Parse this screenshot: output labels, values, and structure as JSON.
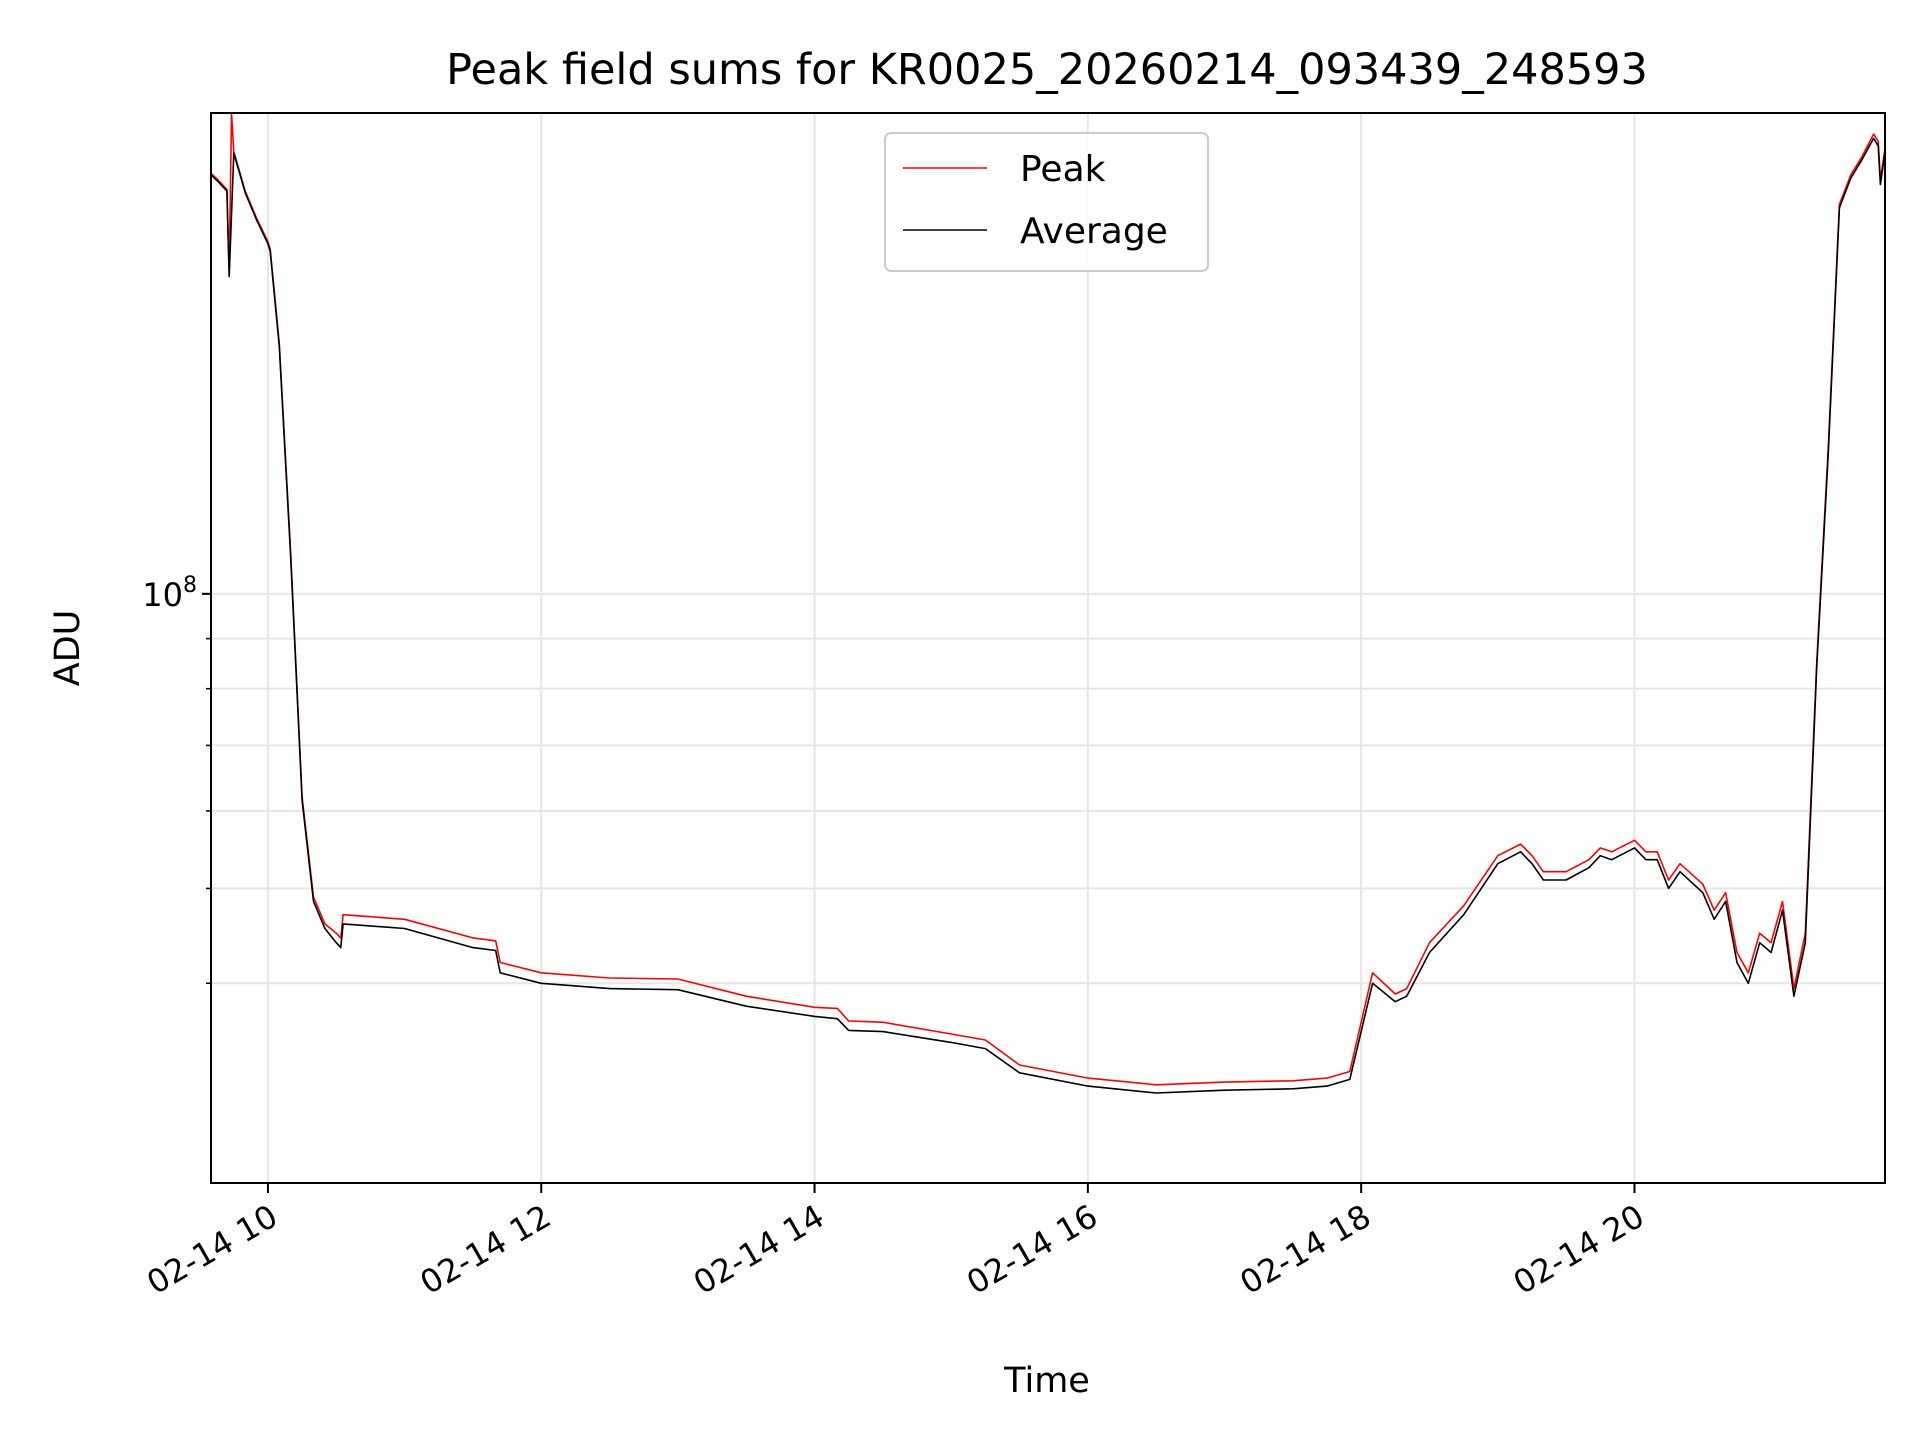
{
  "chart_data": {
    "type": "line",
    "title": "Peak field sums for KR0025_20260214_093439_248593",
    "xlabel": "Time",
    "ylabel": "ADU",
    "yscale": "log",
    "xlim": [
      "2026-02-14 09:35",
      "2026-02-14 21:50"
    ],
    "ylim": [
      25000000,
      310000000
    ],
    "x_ticks": [
      "2026-02-14 10:00",
      "2026-02-14 12:00",
      "2026-02-14 14:00",
      "2026-02-14 16:00",
      "2026-02-14 18:00",
      "2026-02-14 20:00"
    ],
    "x_tick_labels": [
      "02-14 10",
      "02-14 12",
      "02-14 14",
      "02-14 16",
      "02-14 18",
      "02-14 20"
    ],
    "y_major_ticks": [
      100000000
    ],
    "y_major_tick_labels": [
      {
        "base": "10",
        "exp": "8"
      }
    ],
    "y_minor_ticks": [
      40000000,
      50000000,
      60000000,
      70000000,
      80000000,
      90000000
    ],
    "grid": true,
    "legend_position": "upper center",
    "series": [
      {
        "name": "Peak",
        "color": "#ff0000",
        "x": [
          "2026-02-14 09:35",
          "2026-02-14 09:38",
          "2026-02-14 09:42",
          "2026-02-14 09:43",
          "2026-02-14 09:44",
          "2026-02-14 09:45",
          "2026-02-14 09:50",
          "2026-02-14 09:55",
          "2026-02-14 10:00",
          "2026-02-14 10:01",
          "2026-02-14 10:05",
          "2026-02-14 10:10",
          "2026-02-14 10:15",
          "2026-02-14 10:20",
          "2026-02-14 10:25",
          "2026-02-14 10:30",
          "2026-02-14 10:32",
          "2026-02-14 10:33",
          "2026-02-14 11:00",
          "2026-02-14 11:30",
          "2026-02-14 11:40",
          "2026-02-14 11:42",
          "2026-02-14 12:00",
          "2026-02-14 12:30",
          "2026-02-14 13:00",
          "2026-02-14 13:30",
          "2026-02-14 14:00",
          "2026-02-14 14:10",
          "2026-02-14 14:15",
          "2026-02-14 14:30",
          "2026-02-14 15:00",
          "2026-02-14 15:15",
          "2026-02-14 15:30",
          "2026-02-14 16:00",
          "2026-02-14 16:30",
          "2026-02-14 17:00",
          "2026-02-14 17:30",
          "2026-02-14 17:45",
          "2026-02-14 17:55",
          "2026-02-14 18:05",
          "2026-02-14 18:15",
          "2026-02-14 18:20",
          "2026-02-14 18:30",
          "2026-02-14 18:45",
          "2026-02-14 19:00",
          "2026-02-14 19:10",
          "2026-02-14 19:15",
          "2026-02-14 19:20",
          "2026-02-14 19:30",
          "2026-02-14 19:40",
          "2026-02-14 19:45",
          "2026-02-14 19:50",
          "2026-02-14 20:00",
          "2026-02-14 20:05",
          "2026-02-14 20:10",
          "2026-02-14 20:15",
          "2026-02-14 20:20",
          "2026-02-14 20:30",
          "2026-02-14 20:35",
          "2026-02-14 20:40",
          "2026-02-14 20:45",
          "2026-02-14 20:50",
          "2026-02-14 20:55",
          "2026-02-14 21:00",
          "2026-02-14 21:05",
          "2026-02-14 21:10",
          "2026-02-14 21:15",
          "2026-02-14 21:20",
          "2026-02-14 21:25",
          "2026-02-14 21:30",
          "2026-02-14 21:35",
          "2026-02-14 21:40",
          "2026-02-14 21:45",
          "2026-02-14 21:47",
          "2026-02-14 21:48",
          "2026-02-14 21:50"
        ],
        "values": [
          269000000,
          265000000,
          259000000,
          212000000,
          310000000,
          283000000,
          258000000,
          242000000,
          229000000,
          225000000,
          180000000,
          110000000,
          62000000,
          49000000,
          46000000,
          45000000,
          44500000,
          47000000,
          46500000,
          44500000,
          44200000,
          42000000,
          41000000,
          40500000,
          40400000,
          38800000,
          37800000,
          37700000,
          36600000,
          36500000,
          35500000,
          35000000,
          33000000,
          32000000,
          31500000,
          31700000,
          31800000,
          32000000,
          32500000,
          41000000,
          39000000,
          39500000,
          44000000,
          48000000,
          54000000,
          55500000,
          54000000,
          52000000,
          52000000,
          53500000,
          55000000,
          54500000,
          56000000,
          54500000,
          54500000,
          51000000,
          53000000,
          50500000,
          47500000,
          49500000,
          43000000,
          41000000,
          45000000,
          44000000,
          48500000,
          39500000,
          45000000,
          85000000,
          140000000,
          250000000,
          268000000,
          280000000,
          295000000,
          290000000,
          265000000,
          285000000
        ]
      },
      {
        "name": "Average",
        "color": "#000000",
        "x": [
          "2026-02-14 09:35",
          "2026-02-14 09:38",
          "2026-02-14 09:42",
          "2026-02-14 09:43",
          "2026-02-14 09:45",
          "2026-02-14 09:50",
          "2026-02-14 09:55",
          "2026-02-14 10:00",
          "2026-02-14 10:01",
          "2026-02-14 10:05",
          "2026-02-14 10:10",
          "2026-02-14 10:15",
          "2026-02-14 10:20",
          "2026-02-14 10:25",
          "2026-02-14 10:30",
          "2026-02-14 10:32",
          "2026-02-14 10:33",
          "2026-02-14 11:00",
          "2026-02-14 11:30",
          "2026-02-14 11:40",
          "2026-02-14 11:42",
          "2026-02-14 12:00",
          "2026-02-14 12:30",
          "2026-02-14 13:00",
          "2026-02-14 13:30",
          "2026-02-14 14:00",
          "2026-02-14 14:10",
          "2026-02-14 14:15",
          "2026-02-14 14:30",
          "2026-02-14 15:00",
          "2026-02-14 15:15",
          "2026-02-14 15:30",
          "2026-02-14 16:00",
          "2026-02-14 16:30",
          "2026-02-14 17:00",
          "2026-02-14 17:30",
          "2026-02-14 17:45",
          "2026-02-14 17:55",
          "2026-02-14 18:05",
          "2026-02-14 18:15",
          "2026-02-14 18:20",
          "2026-02-14 18:30",
          "2026-02-14 18:45",
          "2026-02-14 19:00",
          "2026-02-14 19:10",
          "2026-02-14 19:15",
          "2026-02-14 19:20",
          "2026-02-14 19:30",
          "2026-02-14 19:40",
          "2026-02-14 19:45",
          "2026-02-14 19:50",
          "2026-02-14 20:00",
          "2026-02-14 20:05",
          "2026-02-14 20:10",
          "2026-02-14 20:15",
          "2026-02-14 20:20",
          "2026-02-14 20:30",
          "2026-02-14 20:35",
          "2026-02-14 20:40",
          "2026-02-14 20:45",
          "2026-02-14 20:50",
          "2026-02-14 20:55",
          "2026-02-14 21:00",
          "2026-02-14 21:05",
          "2026-02-14 21:10",
          "2026-02-14 21:15",
          "2026-02-14 21:20",
          "2026-02-14 21:25",
          "2026-02-14 21:30",
          "2026-02-14 21:35",
          "2026-02-14 21:40",
          "2026-02-14 21:45",
          "2026-02-14 21:47",
          "2026-02-14 21:48",
          "2026-02-14 21:50"
        ],
        "values": [
          268000000,
          264000000,
          258000000,
          211000000,
          282000000,
          257000000,
          241000000,
          228000000,
          224000000,
          179000000,
          109000000,
          61500000,
          48500000,
          45500000,
          44000000,
          43500000,
          46000000,
          45500000,
          43500000,
          43200000,
          41000000,
          40000000,
          39500000,
          39400000,
          37900000,
          37000000,
          36800000,
          35800000,
          35700000,
          34800000,
          34300000,
          32400000,
          31400000,
          30900000,
          31100000,
          31200000,
          31400000,
          31900000,
          40000000,
          38300000,
          38800000,
          43000000,
          47000000,
          53000000,
          54500000,
          53000000,
          51000000,
          51000000,
          52500000,
          54000000,
          53500000,
          55000000,
          53500000,
          53500000,
          50000000,
          52000000,
          49500000,
          46500000,
          48500000,
          42000000,
          40000000,
          44000000,
          43000000,
          47500000,
          38800000,
          44000000,
          84000000,
          138000000,
          248000000,
          266000000,
          278000000,
          292000000,
          287000000,
          262000000,
          283000000
        ]
      }
    ]
  }
}
